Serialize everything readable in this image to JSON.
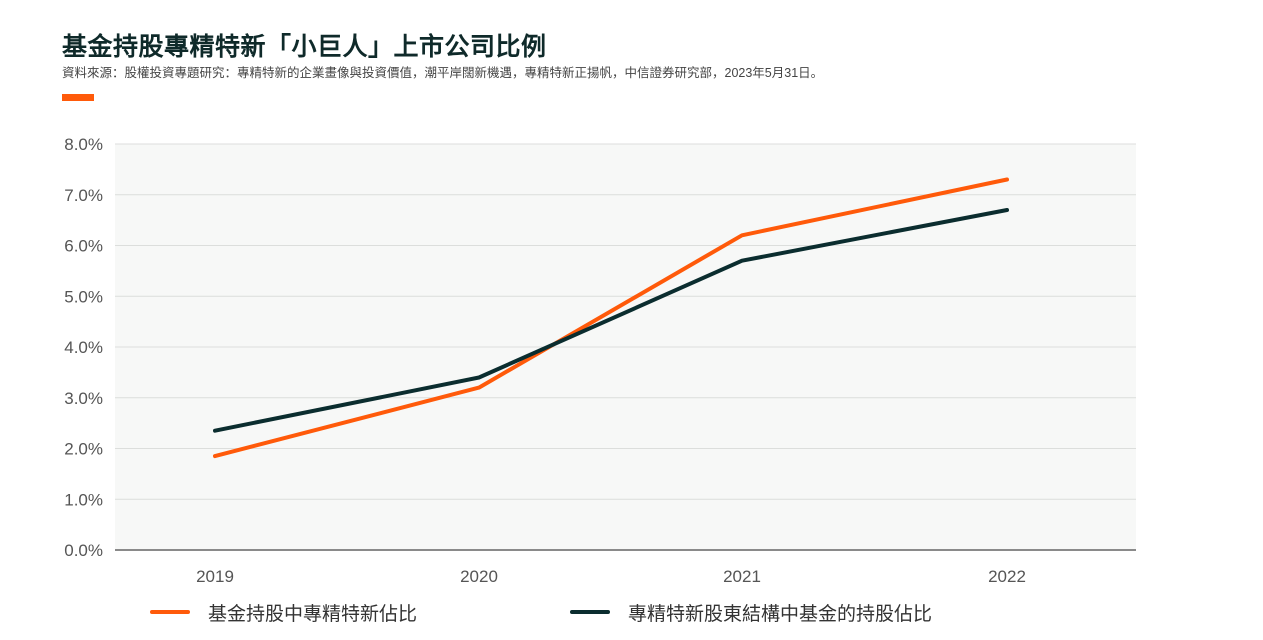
{
  "header": {
    "title": "基金持股專精特新「小巨人」上市公司比例",
    "source": "資料來源：股權投資專題研究：專精特新的企業畫像與投資價值，潮平岸闊新機遇，專精特新正揚帆，中信證券研究部，2023年5月31日。"
  },
  "colors": {
    "accent": "#ff5a0a",
    "series_orange": "#ff5a0a",
    "series_dark": "#0b2d2f",
    "plot_bg": "#f7f8f7",
    "grid": "#dcdedc",
    "axis": "#8a8a8a"
  },
  "chart_data": {
    "type": "line",
    "x": [
      "2019",
      "2020",
      "2021",
      "2022"
    ],
    "series": [
      {
        "name": "基金持股中專精特新佔比",
        "values": [
          1.85,
          3.2,
          6.2,
          7.3
        ],
        "color": "#ff5a0a"
      },
      {
        "name": "專精特新股東結構中基金的持股佔比",
        "values": [
          2.35,
          3.4,
          5.7,
          6.7
        ],
        "color": "#0b2d2f"
      }
    ],
    "ylim": [
      0,
      8
    ],
    "yticks": [
      "0.0%",
      "1.0%",
      "2.0%",
      "3.0%",
      "4.0%",
      "5.0%",
      "6.0%",
      "7.0%",
      "8.0%"
    ],
    "ytick_values": [
      0,
      1,
      2,
      3,
      4,
      5,
      6,
      7,
      8
    ],
    "grid": true,
    "legend_position": "bottom"
  }
}
